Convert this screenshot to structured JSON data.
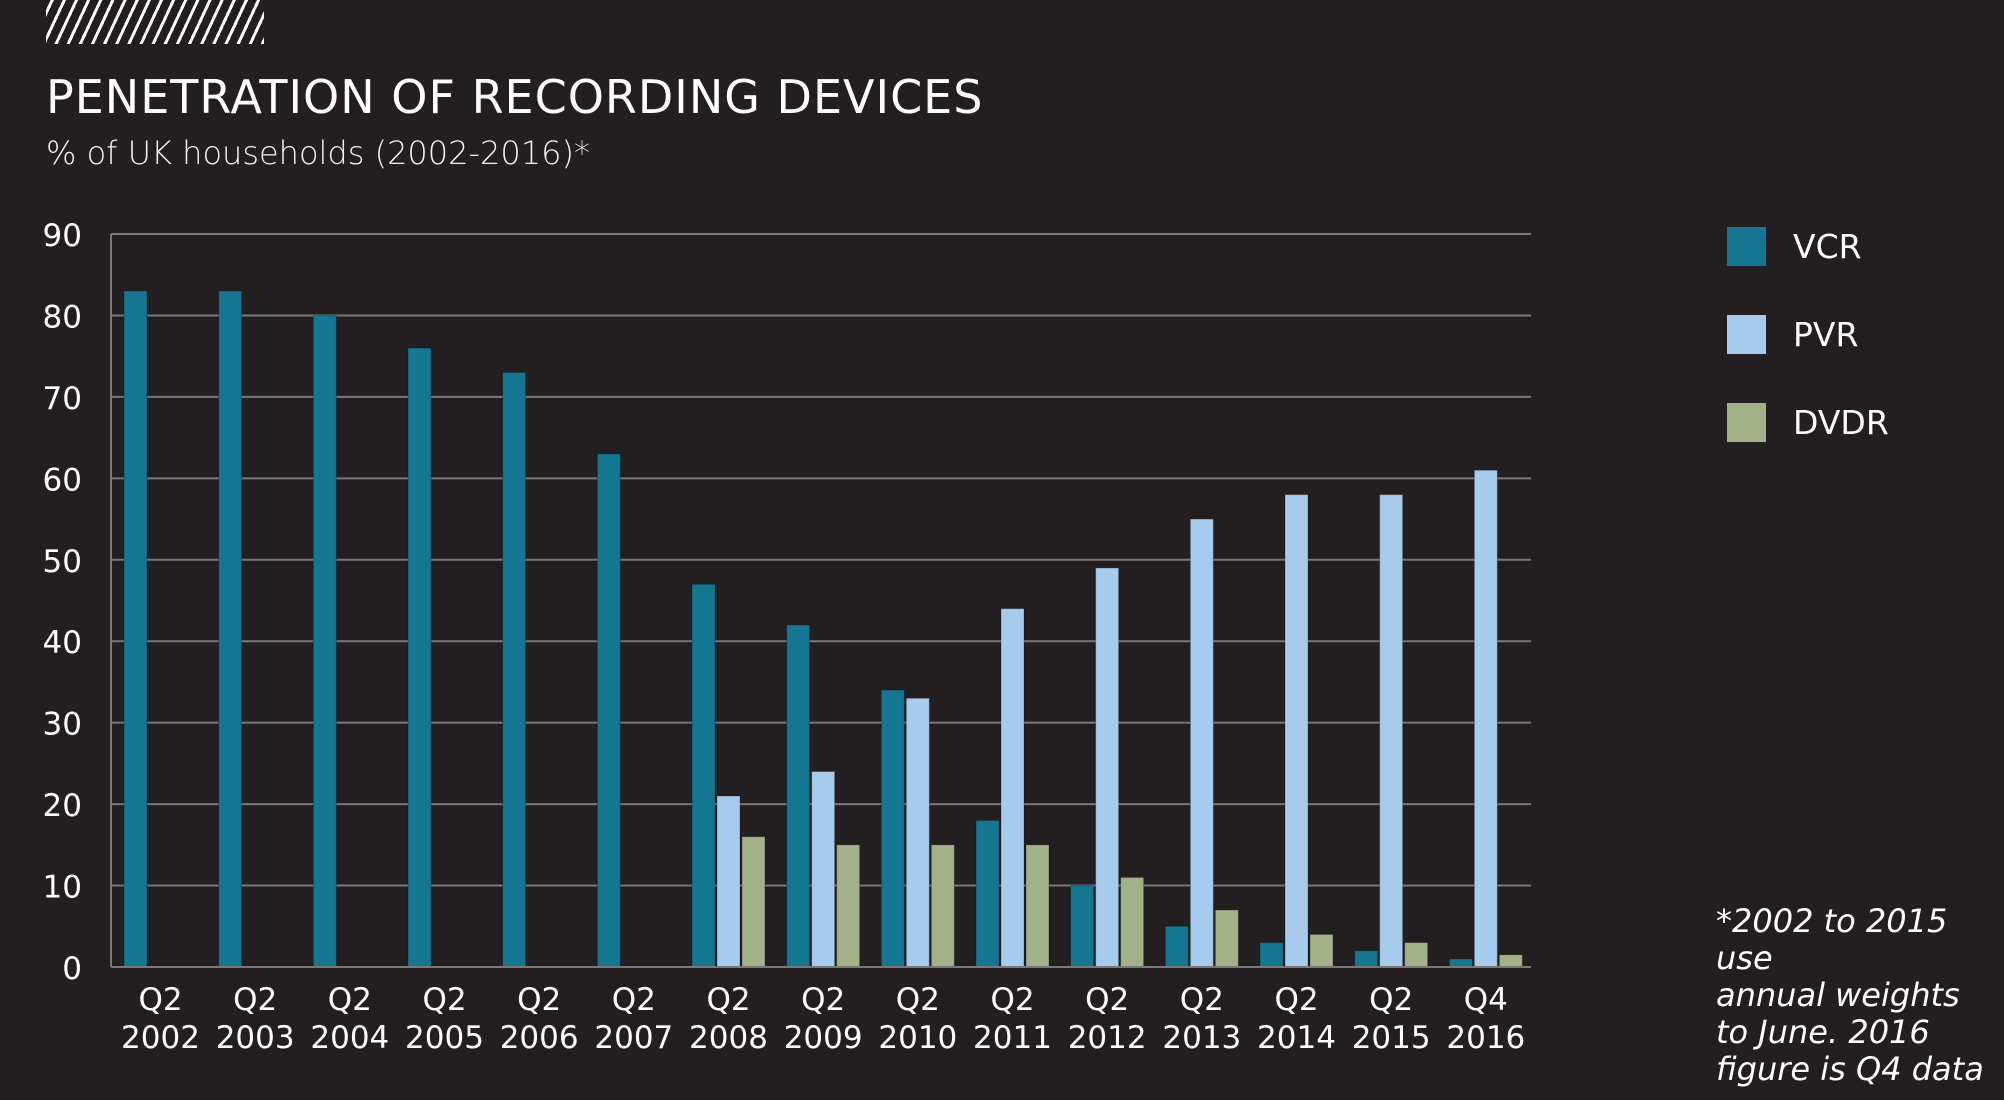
{
  "chart_data": {
    "type": "bar",
    "title": "PENETRATION OF RECORDING DEVICES",
    "subtitle": "% of UK households (2002-2016)*",
    "xlabel": "",
    "ylabel": "",
    "ylim": [
      0,
      90
    ],
    "yticks": [
      0,
      10,
      20,
      30,
      40,
      50,
      60,
      70,
      80,
      90
    ],
    "grid": true,
    "legend_position": "right",
    "categories": [
      {
        "q": "Q2",
        "year": "2002"
      },
      {
        "q": "Q2",
        "year": "2003"
      },
      {
        "q": "Q2",
        "year": "2004"
      },
      {
        "q": "Q2",
        "year": "2005"
      },
      {
        "q": "Q2",
        "year": "2006"
      },
      {
        "q": "Q2",
        "year": "2007"
      },
      {
        "q": "Q2",
        "year": "2008"
      },
      {
        "q": "Q2",
        "year": "2009"
      },
      {
        "q": "Q2",
        "year": "2010"
      },
      {
        "q": "Q2",
        "year": "2011"
      },
      {
        "q": "Q2",
        "year": "2012"
      },
      {
        "q": "Q2",
        "year": "2013"
      },
      {
        "q": "Q2",
        "year": "2014"
      },
      {
        "q": "Q2",
        "year": "2015"
      },
      {
        "q": "Q4",
        "year": "2016"
      }
    ],
    "series": [
      {
        "name": "VCR",
        "color": "#157692",
        "values": [
          83,
          83,
          80,
          76,
          73,
          63,
          47,
          42,
          34,
          18,
          10,
          5,
          3,
          2,
          1
        ]
      },
      {
        "name": "PVR",
        "color": "#a7cbec",
        "values": [
          null,
          null,
          null,
          null,
          null,
          null,
          21,
          24,
          33,
          44,
          49,
          55,
          58,
          58,
          61
        ]
      },
      {
        "name": "DVDR",
        "color": "#a2b187",
        "values": [
          null,
          null,
          null,
          null,
          null,
          null,
          16,
          15,
          15,
          15,
          11,
          7,
          4,
          3,
          1.5
        ]
      }
    ],
    "footnote": "*2002 to 2015 use\nannual weights\nto June. 2016\nfigure is Q4 data"
  }
}
